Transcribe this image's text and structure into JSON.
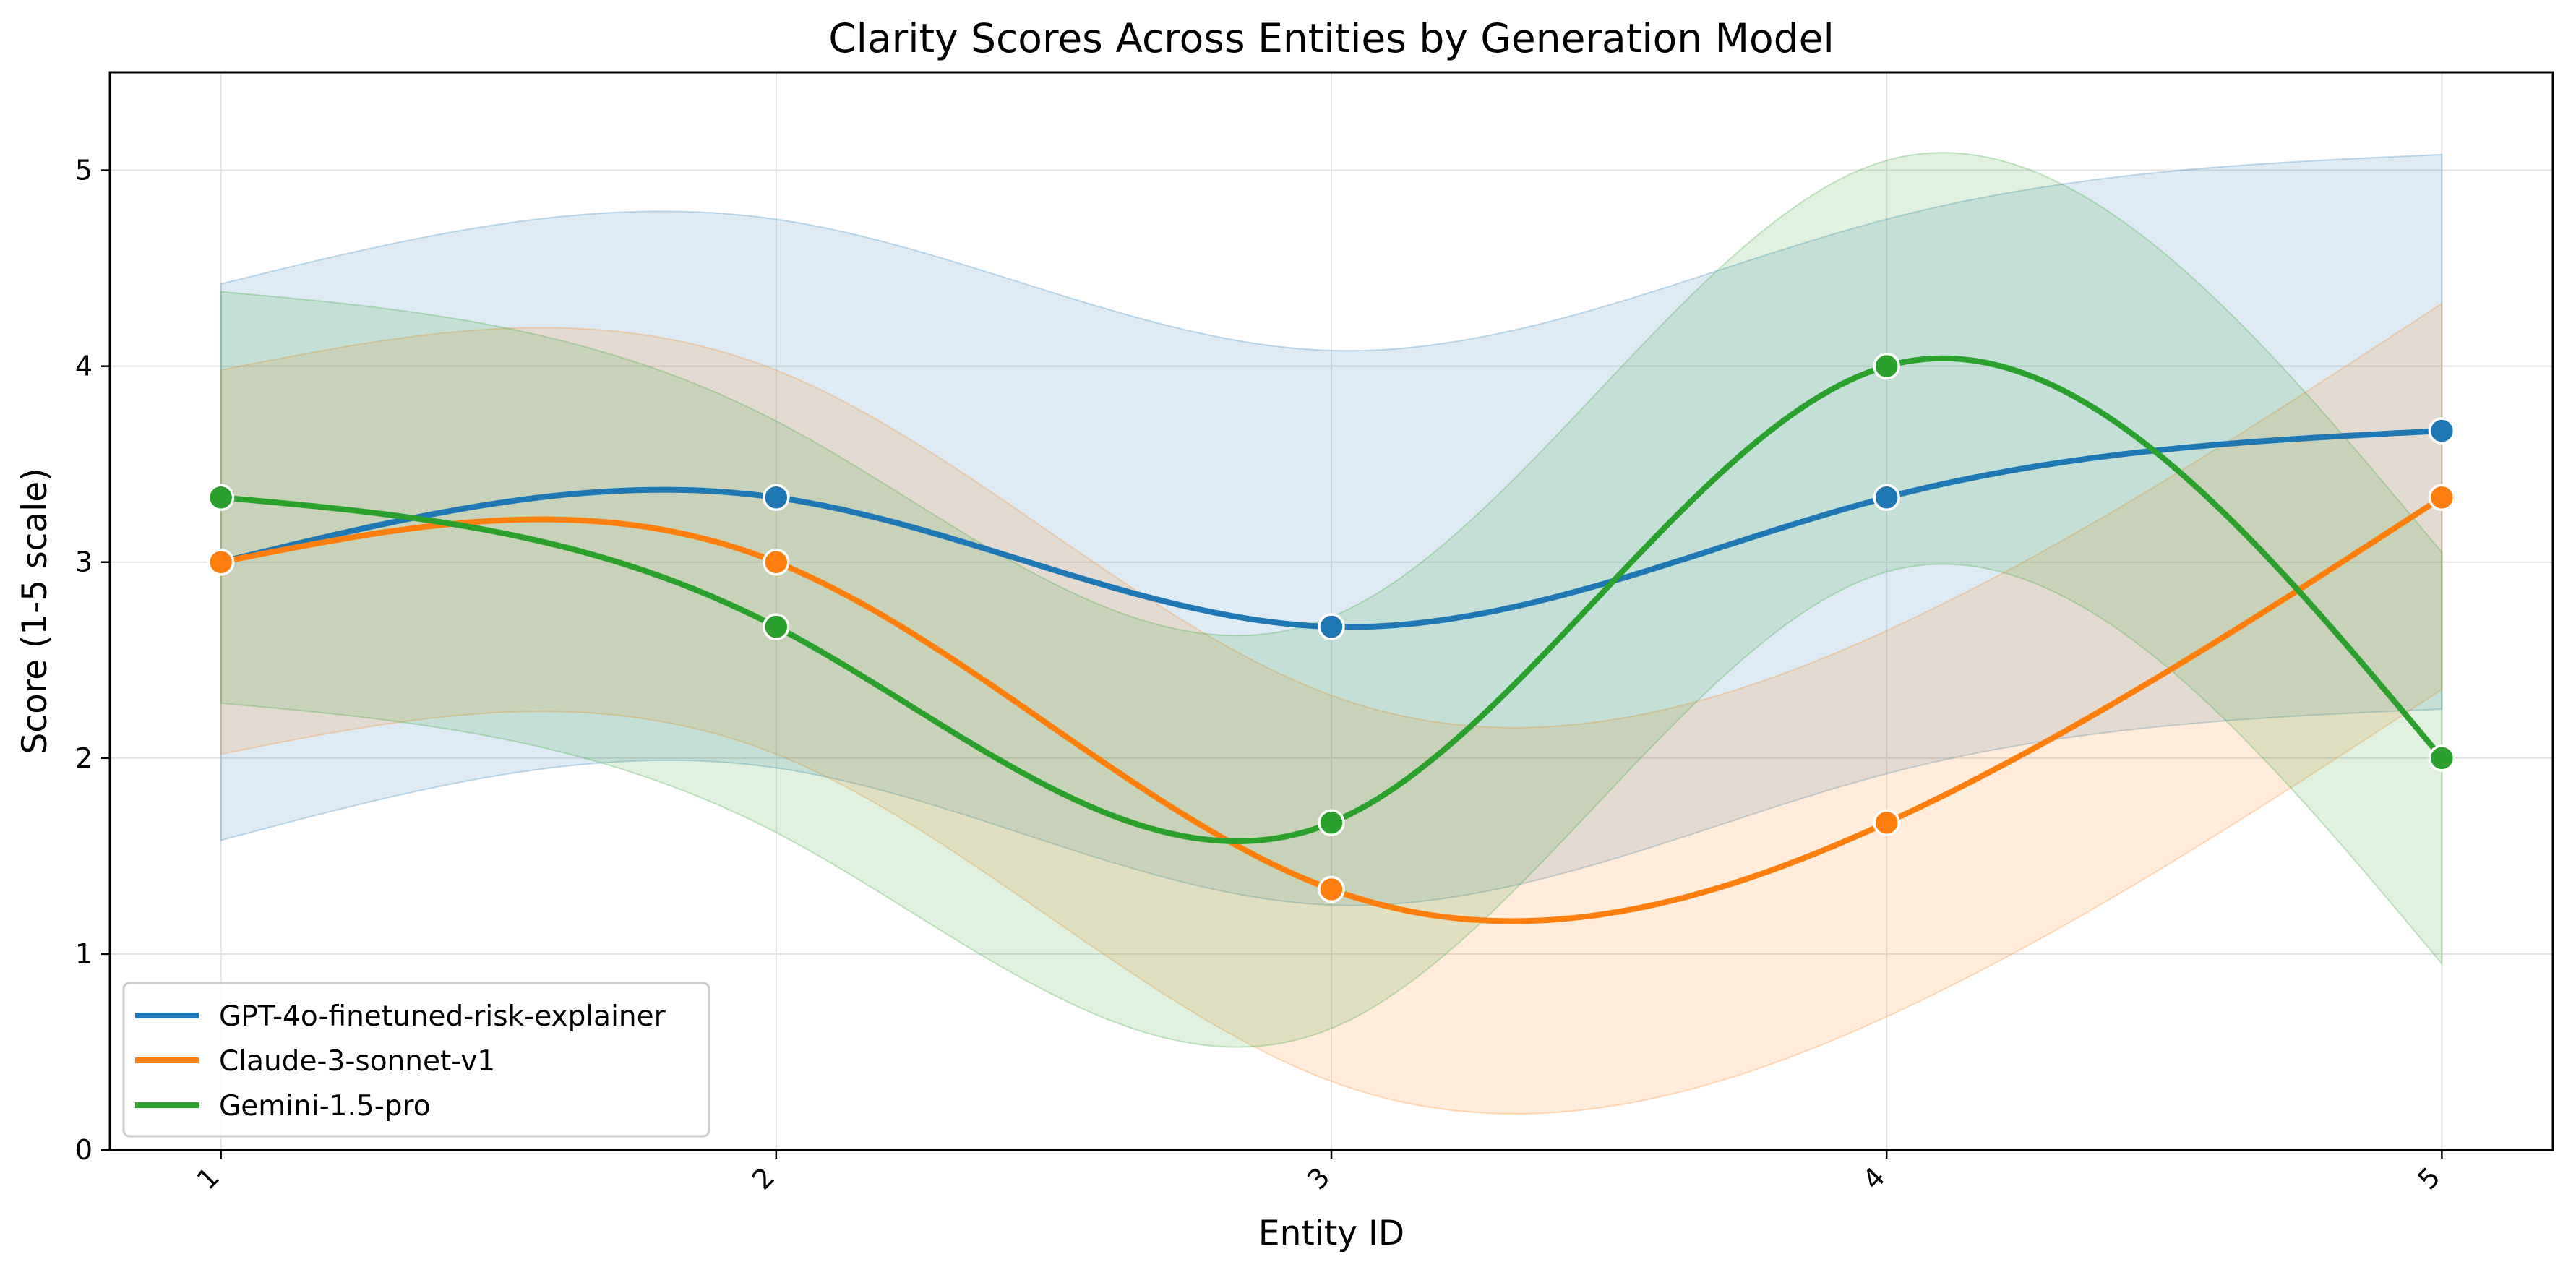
{
  "chart_data": {
    "type": "line",
    "title": "Clarity Scores Across Entities by Generation Model",
    "xlabel": "Entity ID",
    "ylabel": "Score (1-5 scale)",
    "x": [
      1,
      2,
      3,
      4,
      5
    ],
    "x_tick_labels": [
      "1",
      "2",
      "3",
      "4",
      "5"
    ],
    "y_ticks": [
      0,
      1,
      2,
      3,
      4,
      5
    ],
    "xlim": [
      0.8,
      5.2
    ],
    "ylim": [
      0,
      5.5
    ],
    "grid": true,
    "legend_position": "lower-left",
    "smoothed": true,
    "series": [
      {
        "name": "GPT-4o-finetuned-risk-explainer",
        "color": "#1f77b4",
        "values": [
          3.0,
          3.33,
          2.67,
          3.33,
          3.67
        ],
        "band_lower": [
          1.58,
          1.95,
          1.25,
          1.92,
          2.25
        ],
        "band_upper": [
          4.42,
          4.75,
          4.08,
          4.75,
          5.08
        ]
      },
      {
        "name": "Claude-3-sonnet-v1",
        "color": "#ff7f0e",
        "values": [
          3.0,
          3.0,
          1.33,
          1.67,
          3.33
        ],
        "band_lower": [
          2.02,
          2.02,
          0.35,
          0.68,
          2.35
        ],
        "band_upper": [
          3.98,
          3.98,
          2.32,
          2.65,
          4.32
        ]
      },
      {
        "name": "Gemini-1.5-pro",
        "color": "#2ca02c",
        "values": [
          3.33,
          2.67,
          1.67,
          4.0,
          2.0
        ],
        "band_lower": [
          2.28,
          1.62,
          0.62,
          2.95,
          0.95
        ],
        "band_upper": [
          4.38,
          3.72,
          2.72,
          5.05,
          3.05
        ]
      }
    ]
  }
}
